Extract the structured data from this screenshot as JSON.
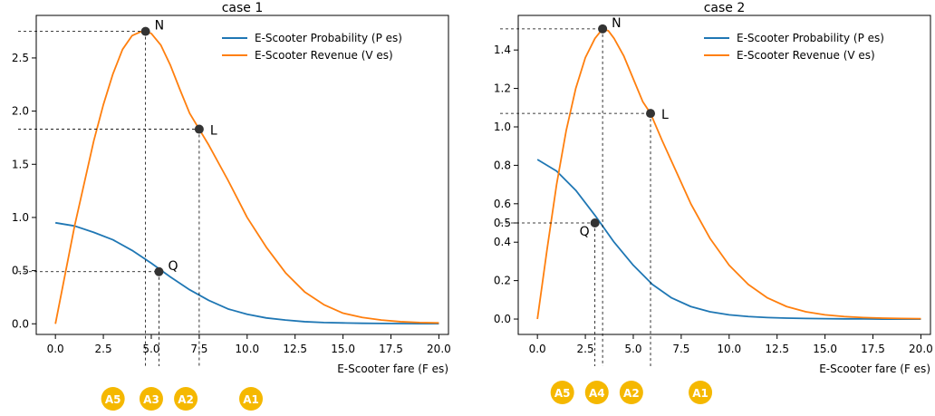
{
  "chart_data": [
    {
      "type": "line",
      "title": "case 1",
      "xlabel": "E-Scooter fare (F es)",
      "ylabel": "",
      "xlim": [
        -1,
        20.5
      ],
      "ylim": [
        -0.1,
        2.9
      ],
      "xticks": [
        0.0,
        2.5,
        5.0,
        7.5,
        10.0,
        12.5,
        15.0,
        17.5,
        20.0
      ],
      "xtick_labels": [
        "0.0",
        "2.5",
        "5.0",
        "7.5",
        "10.0",
        "12.5",
        "15.0",
        "17.5",
        "20.0"
      ],
      "yticks": [
        0.0,
        0.5,
        1.0,
        1.5,
        2.0,
        2.5
      ],
      "ytick_labels": [
        "0.0",
        "0.5",
        "1.0",
        "1.5",
        "2.0",
        "2.5"
      ],
      "grid": false,
      "legend_position": "top-right",
      "series": [
        {
          "name": "E-Scooter Probability (P es)",
          "color": "#1f77b4",
          "x": [
            0,
            1,
            2,
            3,
            4,
            5,
            6,
            7,
            8,
            9,
            10,
            11,
            12,
            13,
            14,
            15,
            16,
            17,
            18,
            19,
            20
          ],
          "y": [
            0.95,
            0.92,
            0.86,
            0.79,
            0.69,
            0.57,
            0.44,
            0.32,
            0.22,
            0.14,
            0.09,
            0.055,
            0.035,
            0.02,
            0.012,
            0.008,
            0.005,
            0.003,
            0.002,
            0.001,
            0.001
          ]
        },
        {
          "name": "E-Scooter Revenue (V es)",
          "color": "#ff7f0e",
          "x": [
            0,
            1,
            2,
            2.5,
            3,
            3.5,
            4,
            4.5,
            4.7,
            5,
            5.5,
            6,
            6.5,
            7,
            7.5,
            8,
            9,
            10,
            11,
            12,
            13,
            14,
            15,
            16,
            17,
            18,
            19,
            20
          ],
          "y": [
            0.0,
            0.92,
            1.72,
            2.06,
            2.35,
            2.58,
            2.71,
            2.75,
            2.75,
            2.73,
            2.62,
            2.43,
            2.2,
            1.98,
            1.83,
            1.68,
            1.35,
            1.0,
            0.72,
            0.48,
            0.3,
            0.18,
            0.1,
            0.06,
            0.035,
            0.02,
            0.012,
            0.008
          ]
        }
      ],
      "points": [
        {
          "label": "N",
          "x": 4.7,
          "y": 2.75
        },
        {
          "label": "L",
          "x": 7.5,
          "y": 1.83
        },
        {
          "label": "Q",
          "x": 5.4,
          "y": 0.49
        }
      ],
      "badges": [
        {
          "label": "A5",
          "x": 3.0
        },
        {
          "label": "A3",
          "x": 5.0
        },
        {
          "label": "A2",
          "x": 6.8
        },
        {
          "label": "A1",
          "x": 10.2
        }
      ]
    },
    {
      "type": "line",
      "title": "case 2",
      "xlabel": "E-Scooter fare (F es)",
      "ylabel": "",
      "xlim": [
        -1,
        20.5
      ],
      "ylim": [
        -0.08,
        1.58
      ],
      "xticks": [
        0.0,
        2.5,
        5.0,
        7.5,
        10.0,
        12.5,
        15.0,
        17.5,
        20.0
      ],
      "xtick_labels": [
        "0.0",
        "2.5",
        "5.0",
        "7.5",
        "10.0",
        "12.5",
        "15.0",
        "17.5",
        "20.0"
      ],
      "yticks": [
        0.0,
        0.2,
        0.4,
        0.5,
        0.6,
        0.8,
        1.0,
        1.2,
        1.4
      ],
      "ytick_labels": [
        "0.0",
        "0.2",
        "0.4",
        "0.5",
        "0.6",
        "0.8",
        "1.0",
        "1.2",
        "1.4"
      ],
      "grid": false,
      "legend_position": "top-right",
      "series": [
        {
          "name": "E-Scooter Probability (P es)",
          "color": "#1f77b4",
          "x": [
            0,
            1,
            2,
            3,
            4,
            5,
            6,
            7,
            8,
            9,
            10,
            11,
            12,
            13,
            14,
            15,
            16,
            17,
            18,
            19,
            20
          ],
          "y": [
            0.83,
            0.77,
            0.67,
            0.54,
            0.4,
            0.28,
            0.18,
            0.11,
            0.065,
            0.038,
            0.022,
            0.013,
            0.008,
            0.005,
            0.003,
            0.002,
            0.001,
            0.001,
            0.0,
            0.0,
            0.0
          ]
        },
        {
          "name": "E-Scooter Revenue (V es)",
          "color": "#ff7f0e",
          "x": [
            0,
            0.5,
            1,
            1.5,
            2,
            2.5,
            3,
            3.4,
            3.7,
            4,
            4.5,
            5,
            5.5,
            5.9,
            6.5,
            7,
            8,
            9,
            10,
            11,
            12,
            13,
            14,
            15,
            16,
            17,
            18,
            19,
            20
          ],
          "y": [
            0.0,
            0.36,
            0.7,
            0.98,
            1.2,
            1.36,
            1.46,
            1.51,
            1.5,
            1.46,
            1.37,
            1.25,
            1.13,
            1.07,
            0.93,
            0.82,
            0.6,
            0.42,
            0.28,
            0.18,
            0.11,
            0.065,
            0.038,
            0.022,
            0.013,
            0.008,
            0.005,
            0.003,
            0.002
          ]
        }
      ],
      "points": [
        {
          "label": "N",
          "x": 3.4,
          "y": 1.51
        },
        {
          "label": "L",
          "x": 5.9,
          "y": 1.07
        },
        {
          "label": "Q",
          "x": 3.0,
          "y": 0.5
        }
      ],
      "badges": [
        {
          "label": "A5",
          "x": 1.3
        },
        {
          "label": "A4",
          "x": 3.1
        },
        {
          "label": "A2",
          "x": 4.9
        },
        {
          "label": "A1",
          "x": 8.5
        }
      ]
    }
  ],
  "badge_color": "#f5b800",
  "badge_text_color": "#ffffff"
}
